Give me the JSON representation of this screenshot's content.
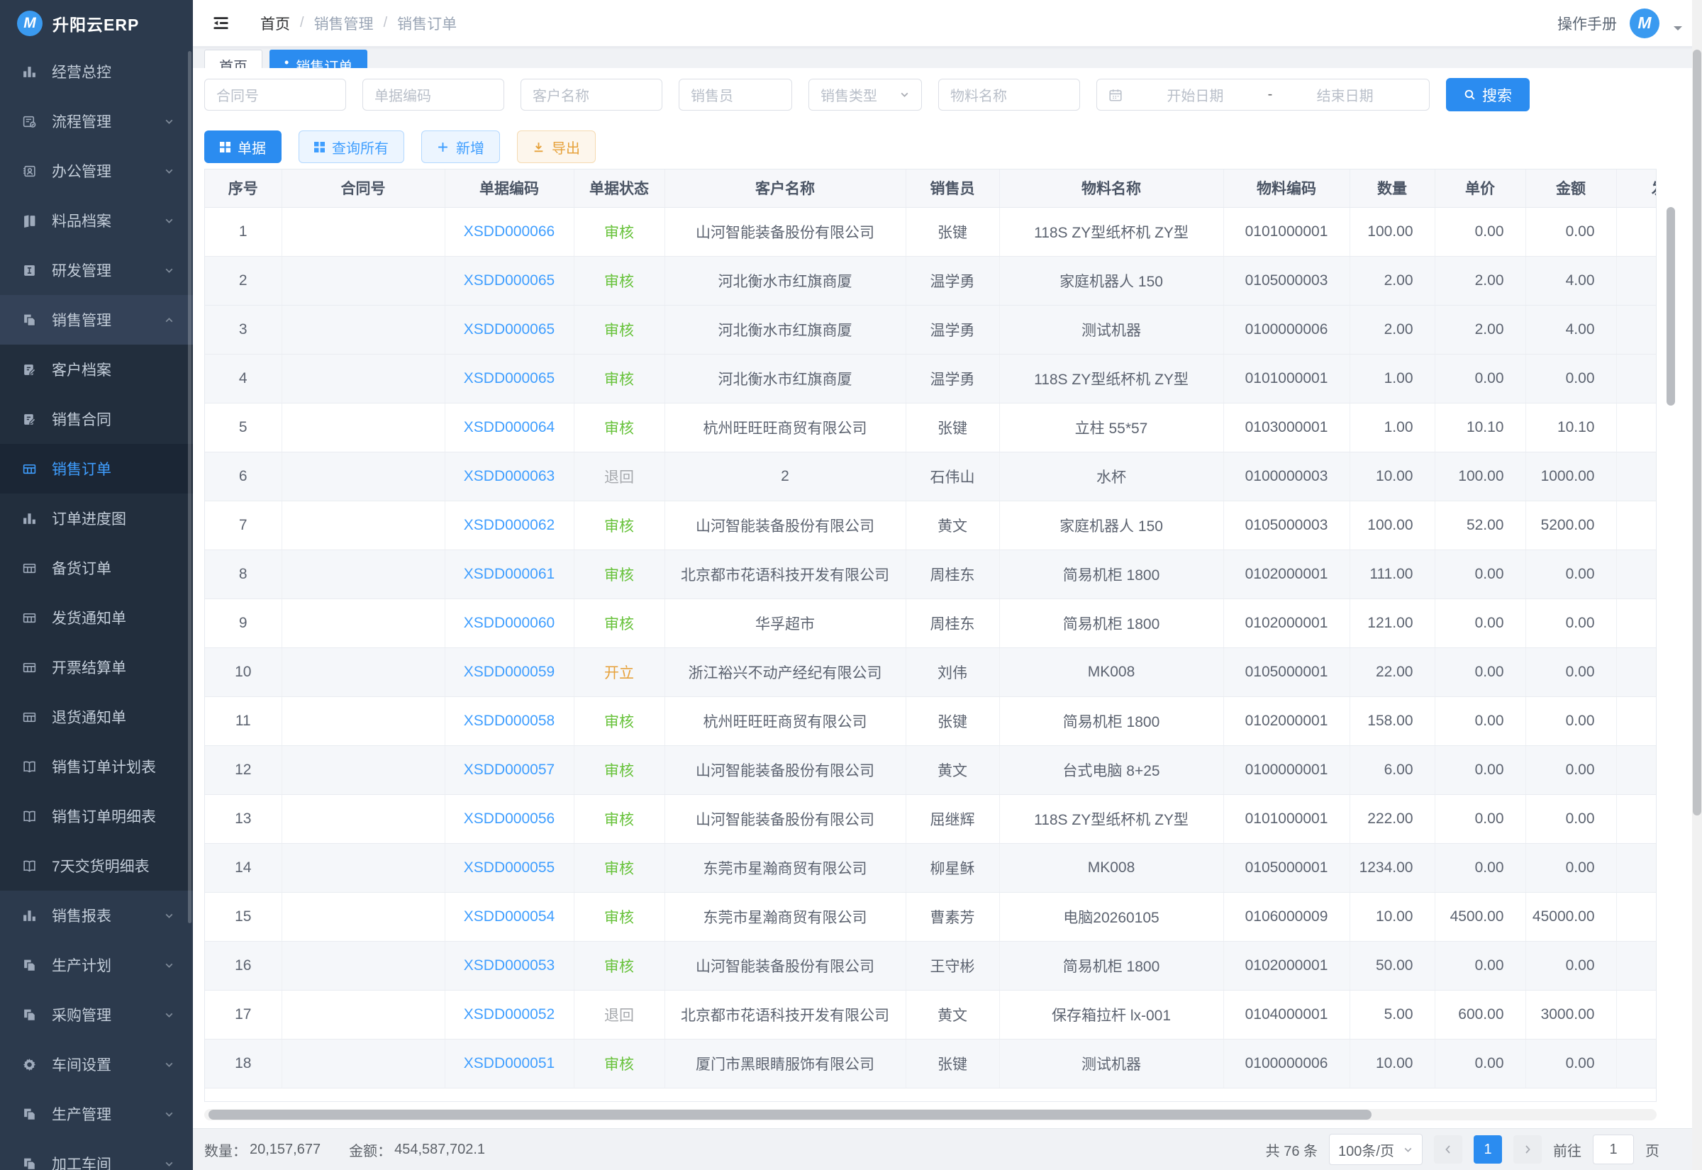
{
  "app": {
    "name": "升阳云ERP",
    "logo_letter": "M"
  },
  "colors": {
    "accent": "#2b8cf0",
    "link": "#3f9eff",
    "status_audit": "#67c23a",
    "status_open": "#e6a23c",
    "status_return": "#a6a9ad",
    "sidebar_bg": "#2c3a4d"
  },
  "sidebar": {
    "items": [
      {
        "label": "经营总控",
        "icon": "bar-chart",
        "kind": "item"
      },
      {
        "label": "流程管理",
        "icon": "flow",
        "kind": "item",
        "chevron": "down"
      },
      {
        "label": "办公管理",
        "icon": "office",
        "kind": "item",
        "chevron": "down"
      },
      {
        "label": "料品档案",
        "icon": "book",
        "kind": "item",
        "chevron": "down"
      },
      {
        "label": "研发管理",
        "icon": "idoc",
        "kind": "item",
        "chevron": "down"
      },
      {
        "label": "销售管理",
        "icon": "pages",
        "kind": "item",
        "chevron": "up",
        "open": true
      },
      {
        "label": "客户档案",
        "icon": "doc-pen",
        "kind": "sub"
      },
      {
        "label": "销售合同",
        "icon": "doc-pen",
        "kind": "sub"
      },
      {
        "label": "销售订单",
        "icon": "grid",
        "kind": "sub",
        "selected": true
      },
      {
        "label": "订单进度图",
        "icon": "bar-chart",
        "kind": "sub"
      },
      {
        "label": "备货订单",
        "icon": "grid",
        "kind": "sub"
      },
      {
        "label": "发货通知单",
        "icon": "grid",
        "kind": "sub"
      },
      {
        "label": "开票结算单",
        "icon": "grid",
        "kind": "sub"
      },
      {
        "label": "退货通知单",
        "icon": "grid",
        "kind": "sub"
      },
      {
        "label": "销售订单计划表",
        "icon": "open-book",
        "kind": "sub"
      },
      {
        "label": "销售订单明细表",
        "icon": "open-book",
        "kind": "sub"
      },
      {
        "label": "7天交货明细表",
        "icon": "open-book",
        "kind": "sub"
      },
      {
        "label": "销售报表",
        "icon": "bar-chart",
        "kind": "item",
        "chevron": "down"
      },
      {
        "label": "生产计划",
        "icon": "pages",
        "kind": "item",
        "chevron": "down"
      },
      {
        "label": "采购管理",
        "icon": "pages",
        "kind": "item",
        "chevron": "down"
      },
      {
        "label": "车间设置",
        "icon": "gear",
        "kind": "item",
        "chevron": "down"
      },
      {
        "label": "生产管理",
        "icon": "pages",
        "kind": "item",
        "chevron": "down"
      },
      {
        "label": "加工车间",
        "icon": "pages",
        "kind": "item",
        "chevron": "down"
      }
    ]
  },
  "header": {
    "breadcrumb": {
      "home": "首页",
      "sep": "/",
      "level1": "销售管理",
      "level2": "销售订单"
    },
    "manual_label": "操作手册"
  },
  "tabs": [
    {
      "label": "首页",
      "active": false
    },
    {
      "label": "销售订单",
      "active": true,
      "dot": "•"
    }
  ],
  "filters": {
    "contract_placeholder": "合同号",
    "doc_code_placeholder": "单据编码",
    "customer_placeholder": "客户名称",
    "salesperson_placeholder": "销售员",
    "sales_type_placeholder": "销售类型",
    "material_placeholder": "物料名称",
    "date_start_placeholder": "开始日期",
    "date_separator": "-",
    "date_end_placeholder": "结束日期",
    "search_label": "搜索"
  },
  "toolbar": {
    "doc_label": "单据",
    "query_all_label": "查询所有",
    "add_label": "新增",
    "export_label": "导出"
  },
  "table": {
    "headers": [
      "序号",
      "合同号",
      "单据编码",
      "单据状态",
      "客户名称",
      "销售员",
      "物料名称",
      "物料编码",
      "数量",
      "单价",
      "金额",
      "发"
    ],
    "rows": [
      {
        "seq": "1",
        "contract": "",
        "code": "XSDD000066",
        "status": "审核",
        "customer": "山河智能装备股份有限公司",
        "sales": "张键",
        "material": "118S ZY型纸杯机 ZY型",
        "mcode": "0101000001",
        "qty": "100.00",
        "price": "0.00",
        "amount": "0.00",
        "ship": ""
      },
      {
        "seq": "2",
        "contract": "",
        "code": "XSDD000065",
        "status": "审核",
        "customer": "河北衡水市红旗商厦",
        "sales": "温学勇",
        "material": "家庭机器人 150",
        "mcode": "0105000003",
        "qty": "2.00",
        "price": "2.00",
        "amount": "4.00",
        "ship": ""
      },
      {
        "seq": "3",
        "contract": "",
        "code": "XSDD000065",
        "status": "审核",
        "customer": "河北衡水市红旗商厦",
        "sales": "温学勇",
        "material": "测试机器",
        "mcode": "0100000006",
        "qty": "2.00",
        "price": "2.00",
        "amount": "4.00",
        "ship": ""
      },
      {
        "seq": "4",
        "contract": "",
        "code": "XSDD000065",
        "status": "审核",
        "customer": "河北衡水市红旗商厦",
        "sales": "温学勇",
        "material": "118S ZY型纸杯机 ZY型",
        "mcode": "0101000001",
        "qty": "1.00",
        "price": "0.00",
        "amount": "0.00",
        "ship": ""
      },
      {
        "seq": "5",
        "contract": "",
        "code": "XSDD000064",
        "status": "审核",
        "customer": "杭州旺旺旺商贸有限公司",
        "sales": "张键",
        "material": "立柱 55*57",
        "mcode": "0103000001",
        "qty": "1.00",
        "price": "10.10",
        "amount": "10.10",
        "ship": ""
      },
      {
        "seq": "6",
        "contract": "",
        "code": "XSDD000063",
        "status": "退回",
        "customer": "2",
        "sales": "石伟山",
        "material": "水杯",
        "mcode": "0100000003",
        "qty": "10.00",
        "price": "100.00",
        "amount": "1000.00",
        "ship": ""
      },
      {
        "seq": "7",
        "contract": "",
        "code": "XSDD000062",
        "status": "审核",
        "customer": "山河智能装备股份有限公司",
        "sales": "黄文",
        "material": "家庭机器人 150",
        "mcode": "0105000003",
        "qty": "100.00",
        "price": "52.00",
        "amount": "5200.00",
        "ship": ""
      },
      {
        "seq": "8",
        "contract": "",
        "code": "XSDD000061",
        "status": "审核",
        "customer": "北京都市花语科技开发有限公司",
        "sales": "周桂东",
        "material": "简易机柜 1800",
        "mcode": "0102000001",
        "qty": "111.00",
        "price": "0.00",
        "amount": "0.00",
        "ship": ""
      },
      {
        "seq": "9",
        "contract": "",
        "code": "XSDD000060",
        "status": "审核",
        "customer": "华孚超市",
        "sales": "周桂东",
        "material": "简易机柜 1800",
        "mcode": "0102000001",
        "qty": "121.00",
        "price": "0.00",
        "amount": "0.00",
        "ship": ""
      },
      {
        "seq": "10",
        "contract": "",
        "code": "XSDD000059",
        "status": "开立",
        "customer": "浙江裕兴不动产经纪有限公司",
        "sales": "刘伟",
        "material": "MK008",
        "mcode": "0105000001",
        "qty": "22.00",
        "price": "0.00",
        "amount": "0.00",
        "ship": ""
      },
      {
        "seq": "11",
        "contract": "",
        "code": "XSDD000058",
        "status": "审核",
        "customer": "杭州旺旺旺商贸有限公司",
        "sales": "张键",
        "material": "简易机柜 1800",
        "mcode": "0102000001",
        "qty": "158.00",
        "price": "0.00",
        "amount": "0.00",
        "ship": ""
      },
      {
        "seq": "12",
        "contract": "",
        "code": "XSDD000057",
        "status": "审核",
        "customer": "山河智能装备股份有限公司",
        "sales": "黄文",
        "material": "台式电脑 8+25",
        "mcode": "0100000001",
        "qty": "6.00",
        "price": "0.00",
        "amount": "0.00",
        "ship": ""
      },
      {
        "seq": "13",
        "contract": "",
        "code": "XSDD000056",
        "status": "审核",
        "customer": "山河智能装备股份有限公司",
        "sales": "屈继辉",
        "material": "118S ZY型纸杯机 ZY型",
        "mcode": "0101000001",
        "qty": "222.00",
        "price": "0.00",
        "amount": "0.00",
        "ship": ""
      },
      {
        "seq": "14",
        "contract": "",
        "code": "XSDD000055",
        "status": "审核",
        "customer": "东莞市星瀚商贸有限公司",
        "sales": "柳星稣",
        "material": "MK008",
        "mcode": "0105000001",
        "qty": "1234.00",
        "price": "0.00",
        "amount": "0.00",
        "ship": ""
      },
      {
        "seq": "15",
        "contract": "",
        "code": "XSDD000054",
        "status": "审核",
        "customer": "东莞市星瀚商贸有限公司",
        "sales": "曹素芳",
        "material": "电脑20260105",
        "mcode": "0106000009",
        "qty": "10.00",
        "price": "4500.00",
        "amount": "45000.00",
        "ship": ""
      },
      {
        "seq": "16",
        "contract": "",
        "code": "XSDD000053",
        "status": "审核",
        "customer": "山河智能装备股份有限公司",
        "sales": "王守彬",
        "material": "简易机柜 1800",
        "mcode": "0102000001",
        "qty": "50.00",
        "price": "0.00",
        "amount": "0.00",
        "ship": ""
      },
      {
        "seq": "17",
        "contract": "",
        "code": "XSDD000052",
        "status": "退回",
        "customer": "北京都市花语科技开发有限公司",
        "sales": "黄文",
        "material": "保存箱拉杆 lx-001",
        "mcode": "0104000001",
        "qty": "5.00",
        "price": "600.00",
        "amount": "3000.00",
        "ship": ""
      },
      {
        "seq": "18",
        "contract": "",
        "code": "XSDD000051",
        "status": "审核",
        "customer": "厦门市黑眼睛服饰有限公司",
        "sales": "张键",
        "material": "测试机器",
        "mcode": "0100000006",
        "qty": "10.00",
        "price": "0.00",
        "amount": "0.00",
        "ship": ""
      }
    ]
  },
  "footer": {
    "qty_label": "数量：",
    "qty_value": "20,157,677",
    "amount_label": "金额：",
    "amount_value": "454,587,702.1",
    "total_text": "共 76 条",
    "page_size_text": "100条/页",
    "current_page": "1",
    "goto_label": "前往",
    "goto_value": "1",
    "goto_suffix": "页"
  }
}
